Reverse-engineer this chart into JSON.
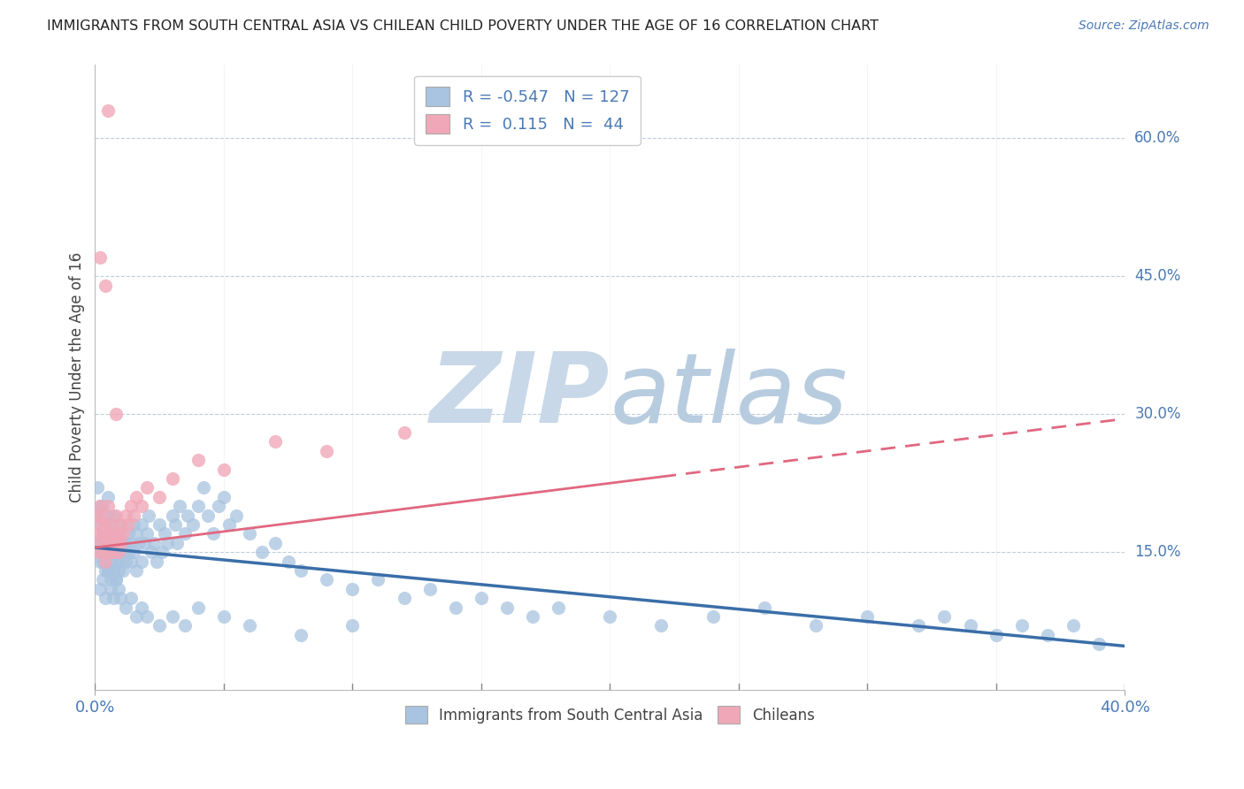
{
  "title": "IMMIGRANTS FROM SOUTH CENTRAL ASIA VS CHILEAN CHILD POVERTY UNDER THE AGE OF 16 CORRELATION CHART",
  "source": "Source: ZipAtlas.com",
  "ylabel": "Child Poverty Under the Age of 16",
  "right_yticks": [
    "60.0%",
    "45.0%",
    "30.0%",
    "15.0%"
  ],
  "right_ytick_vals": [
    0.6,
    0.45,
    0.3,
    0.15
  ],
  "legend_blue_label": "Immigrants from South Central Asia",
  "legend_pink_label": "Chileans",
  "R_blue": -0.547,
  "N_blue": 127,
  "R_pink": 0.115,
  "N_pink": 44,
  "blue_color": "#a8c4e0",
  "pink_color": "#f0a8b8",
  "blue_line_color": "#3a6ea8",
  "pink_line_color": "#e06880",
  "watermark_color": "#ccd8e8",
  "background_color": "#ffffff",
  "blue_scatter_x": [
    0.001,
    0.001,
    0.001,
    0.002,
    0.002,
    0.002,
    0.002,
    0.003,
    0.003,
    0.003,
    0.003,
    0.004,
    0.004,
    0.004,
    0.004,
    0.005,
    0.005,
    0.005,
    0.005,
    0.005,
    0.006,
    0.006,
    0.006,
    0.006,
    0.007,
    0.007,
    0.007,
    0.007,
    0.008,
    0.008,
    0.008,
    0.009,
    0.009,
    0.009,
    0.01,
    0.01,
    0.01,
    0.011,
    0.011,
    0.012,
    0.012,
    0.013,
    0.013,
    0.014,
    0.014,
    0.015,
    0.015,
    0.016,
    0.016,
    0.017,
    0.018,
    0.018,
    0.019,
    0.02,
    0.021,
    0.022,
    0.023,
    0.024,
    0.025,
    0.026,
    0.027,
    0.028,
    0.03,
    0.031,
    0.032,
    0.033,
    0.035,
    0.036,
    0.038,
    0.04,
    0.042,
    0.044,
    0.046,
    0.048,
    0.05,
    0.052,
    0.055,
    0.06,
    0.065,
    0.07,
    0.075,
    0.08,
    0.09,
    0.1,
    0.11,
    0.12,
    0.13,
    0.14,
    0.15,
    0.16,
    0.17,
    0.18,
    0.2,
    0.22,
    0.24,
    0.26,
    0.28,
    0.3,
    0.32,
    0.33,
    0.34,
    0.35,
    0.36,
    0.37,
    0.38,
    0.39,
    0.002,
    0.003,
    0.004,
    0.005,
    0.006,
    0.007,
    0.008,
    0.009,
    0.01,
    0.012,
    0.014,
    0.016,
    0.018,
    0.02,
    0.025,
    0.03,
    0.035,
    0.04,
    0.05,
    0.06,
    0.08,
    0.1
  ],
  "blue_scatter_y": [
    0.19,
    0.22,
    0.16,
    0.18,
    0.15,
    0.2,
    0.14,
    0.17,
    0.16,
    0.14,
    0.2,
    0.15,
    0.18,
    0.13,
    0.16,
    0.17,
    0.15,
    0.19,
    0.13,
    0.21,
    0.16,
    0.14,
    0.18,
    0.12,
    0.15,
    0.17,
    0.13,
    0.19,
    0.14,
    0.16,
    0.12,
    0.15,
    0.17,
    0.13,
    0.16,
    0.14,
    0.18,
    0.15,
    0.13,
    0.16,
    0.14,
    0.17,
    0.15,
    0.16,
    0.14,
    0.18,
    0.15,
    0.17,
    0.13,
    0.16,
    0.18,
    0.14,
    0.16,
    0.17,
    0.19,
    0.15,
    0.16,
    0.14,
    0.18,
    0.15,
    0.17,
    0.16,
    0.19,
    0.18,
    0.16,
    0.2,
    0.17,
    0.19,
    0.18,
    0.2,
    0.22,
    0.19,
    0.17,
    0.2,
    0.21,
    0.18,
    0.19,
    0.17,
    0.15,
    0.16,
    0.14,
    0.13,
    0.12,
    0.11,
    0.12,
    0.1,
    0.11,
    0.09,
    0.1,
    0.09,
    0.08,
    0.09,
    0.08,
    0.07,
    0.08,
    0.09,
    0.07,
    0.08,
    0.07,
    0.08,
    0.07,
    0.06,
    0.07,
    0.06,
    0.07,
    0.05,
    0.11,
    0.12,
    0.1,
    0.13,
    0.11,
    0.1,
    0.12,
    0.11,
    0.1,
    0.09,
    0.1,
    0.08,
    0.09,
    0.08,
    0.07,
    0.08,
    0.07,
    0.09,
    0.08,
    0.07,
    0.06,
    0.07
  ],
  "pink_scatter_x": [
    0.001,
    0.001,
    0.001,
    0.002,
    0.002,
    0.002,
    0.003,
    0.003,
    0.003,
    0.004,
    0.004,
    0.004,
    0.005,
    0.005,
    0.005,
    0.006,
    0.006,
    0.007,
    0.007,
    0.008,
    0.008,
    0.009,
    0.009,
    0.01,
    0.01,
    0.011,
    0.012,
    0.013,
    0.014,
    0.015,
    0.016,
    0.018,
    0.02,
    0.025,
    0.03,
    0.04,
    0.05,
    0.07,
    0.09,
    0.12,
    0.002,
    0.004,
    0.005,
    0.008
  ],
  "pink_scatter_y": [
    0.17,
    0.19,
    0.15,
    0.18,
    0.16,
    0.2,
    0.17,
    0.15,
    0.19,
    0.16,
    0.18,
    0.14,
    0.17,
    0.15,
    0.2,
    0.16,
    0.18,
    0.15,
    0.17,
    0.16,
    0.19,
    0.15,
    0.17,
    0.16,
    0.18,
    0.17,
    0.19,
    0.18,
    0.2,
    0.19,
    0.21,
    0.2,
    0.22,
    0.21,
    0.23,
    0.25,
    0.24,
    0.27,
    0.26,
    0.28,
    0.47,
    0.44,
    0.63,
    0.3
  ],
  "blue_line_x0": 0.0,
  "blue_line_x1": 0.4,
  "blue_line_y0": 0.155,
  "blue_line_y1": 0.048,
  "pink_line_x0": 0.0,
  "pink_line_x1": 0.4,
  "pink_line_y0": 0.155,
  "pink_line_y1": 0.295,
  "xlim": [
    0.0,
    0.4
  ],
  "ylim": [
    0.0,
    0.68
  ]
}
